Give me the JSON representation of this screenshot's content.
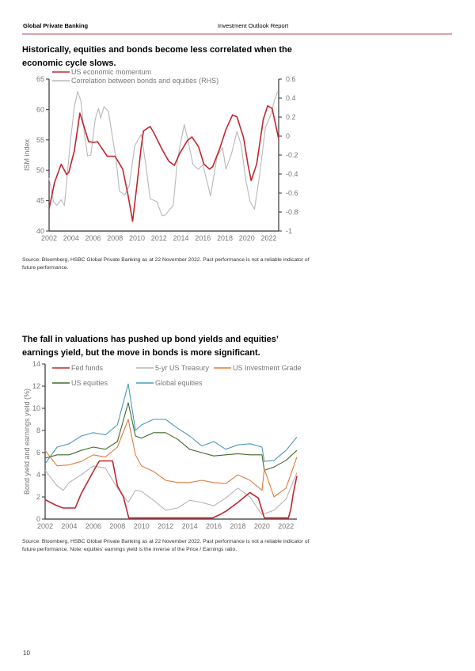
{
  "header": {
    "left": "Global Private Banking",
    "center": "Investment Outlook Report"
  },
  "page_number": "10",
  "colors": {
    "accent": "#c0272d",
    "rule": "#dca3ab"
  },
  "section1": {
    "title": "Historically, equities and bonds become less correlated when the economic cycle slows.",
    "source": "Source: Bloomberg, HSBC Global Private Banking as at 22 November 2022. Past performance is not a reliable indicator of future performance."
  },
  "section2": {
    "title": "The fall in valuations has pushed up bond yields and equities’ earnings yield, but the move in bonds is more significant.",
    "source": "Source: Bloomberg, HSBC Global Private Banking as at 22 November 2022. Past performance is not a reliable indicator of future performance. Note: equities’ earnings yield is the inverse of the Price / Earnings ratio."
  },
  "chart_data": [
    {
      "type": "line",
      "ylabel": "ISM index",
      "ylim": [
        40,
        65
      ],
      "yticks": [
        40,
        45,
        50,
        55,
        60,
        65
      ],
      "y2lim": [
        -1,
        0.6
      ],
      "y2ticks": [
        "-1",
        "-0.8",
        "-0.6",
        "-0.4",
        "-0.2",
        "0",
        "0.2",
        "0.4",
        "0.6"
      ],
      "xlim": [
        2002,
        2022.9
      ],
      "xticks": [
        "2002",
        "2004",
        "2006",
        "2008",
        "2010",
        "2012",
        "2014",
        "2016",
        "2018",
        "2020",
        "2022"
      ],
      "legend_position": "top-left",
      "series": [
        {
          "name": "US economic momentum",
          "axis": "left",
          "color": "#c0272d",
          "points": [
            [
              2002.0,
              43.7
            ],
            [
              2002.5,
              48.0
            ],
            [
              2003.1,
              51.0
            ],
            [
              2003.6,
              49.3
            ],
            [
              2003.8,
              49.7
            ],
            [
              2004.3,
              53.2
            ],
            [
              2004.8,
              59.4
            ],
            [
              2005.6,
              54.7
            ],
            [
              2006.1,
              54.6
            ],
            [
              2006.4,
              54.7
            ],
            [
              2007.3,
              52.3
            ],
            [
              2008.0,
              52.3
            ],
            [
              2008.7,
              50.2
            ],
            [
              2009.2,
              45.8
            ],
            [
              2009.6,
              41.6
            ],
            [
              2010.0,
              47.6
            ],
            [
              2010.4,
              54.1
            ],
            [
              2010.6,
              56.5
            ],
            [
              2011.2,
              57.2
            ],
            [
              2011.5,
              56.3
            ],
            [
              2012.3,
              53.4
            ],
            [
              2012.9,
              51.5
            ],
            [
              2013.4,
              50.8
            ],
            [
              2013.9,
              52.8
            ],
            [
              2014.6,
              54.9
            ],
            [
              2015.0,
              55.5
            ],
            [
              2015.6,
              53.9
            ],
            [
              2016.1,
              51.0
            ],
            [
              2016.6,
              50.2
            ],
            [
              2016.9,
              50.6
            ],
            [
              2017.5,
              53.4
            ],
            [
              2018.1,
              56.7
            ],
            [
              2018.7,
              59.1
            ],
            [
              2019.1,
              58.8
            ],
            [
              2019.7,
              55.4
            ],
            [
              2020.1,
              51.0
            ],
            [
              2020.4,
              48.3
            ],
            [
              2020.9,
              51.0
            ],
            [
              2021.5,
              58.4
            ],
            [
              2021.9,
              60.6
            ],
            [
              2022.3,
              60.2
            ],
            [
              2022.9,
              55.2
            ]
          ]
        },
        {
          "name": "Correlation between bonds and equities (RHS)",
          "axis": "right",
          "color": "#b8b8b8",
          "points": [
            [
              2002.0,
              -0.44
            ],
            [
              2002.4,
              -0.69
            ],
            [
              2002.7,
              -0.73
            ],
            [
              2003.1,
              -0.67
            ],
            [
              2003.4,
              -0.73
            ],
            [
              2003.9,
              -0.1
            ],
            [
              2004.3,
              0.31
            ],
            [
              2004.6,
              0.47
            ],
            [
              2004.9,
              0.37
            ],
            [
              2005.2,
              0.04
            ],
            [
              2005.5,
              -0.21
            ],
            [
              2005.8,
              -0.2
            ],
            [
              2006.2,
              0.18
            ],
            [
              2006.5,
              0.29
            ],
            [
              2006.7,
              0.19
            ],
            [
              2007.0,
              0.31
            ],
            [
              2007.4,
              0.26
            ],
            [
              2007.7,
              0.04
            ],
            [
              2008.1,
              -0.24
            ],
            [
              2008.4,
              -0.58
            ],
            [
              2008.9,
              -0.62
            ],
            [
              2009.3,
              -0.52
            ],
            [
              2009.8,
              -0.1
            ],
            [
              2010.4,
              0.02
            ],
            [
              2010.8,
              -0.3
            ],
            [
              2011.2,
              -0.66
            ],
            [
              2011.8,
              -0.69
            ],
            [
              2012.3,
              -0.84
            ],
            [
              2012.6,
              -0.83
            ],
            [
              2013.0,
              -0.77
            ],
            [
              2013.3,
              -0.73
            ],
            [
              2013.7,
              -0.24
            ],
            [
              2014.3,
              0.12
            ],
            [
              2014.6,
              -0.02
            ],
            [
              2015.1,
              -0.3
            ],
            [
              2015.6,
              -0.35
            ],
            [
              2016.0,
              -0.3
            ],
            [
              2016.3,
              -0.44
            ],
            [
              2016.7,
              -0.63
            ],
            [
              2016.9,
              -0.49
            ],
            [
              2017.3,
              -0.21
            ],
            [
              2017.8,
              -0.12
            ],
            [
              2018.1,
              -0.35
            ],
            [
              2018.6,
              -0.19
            ],
            [
              2019.1,
              0.05
            ],
            [
              2019.5,
              -0.1
            ],
            [
              2019.9,
              -0.46
            ],
            [
              2020.3,
              -0.69
            ],
            [
              2020.7,
              -0.77
            ],
            [
              2021.2,
              -0.38
            ],
            [
              2021.7,
              0.09
            ],
            [
              2022.2,
              0.23
            ],
            [
              2022.5,
              0.37
            ],
            [
              2022.8,
              0.47
            ]
          ]
        }
      ]
    },
    {
      "type": "line",
      "ylabel": "Bond yield and earnings yield (%)",
      "ylim": [
        0,
        14
      ],
      "yticks": [
        0,
        2,
        4,
        6,
        8,
        10,
        12,
        14
      ],
      "xlim": [
        2002,
        2022.9
      ],
      "xticks": [
        "2002",
        "2004",
        "2006",
        "2008",
        "2010",
        "2012",
        "2014",
        "2016",
        "2018",
        "2020",
        "2022"
      ],
      "legend_position": "top",
      "series": [
        {
          "name": "Fed funds",
          "color": "#c0272d",
          "points": [
            [
              2002,
              1.75
            ],
            [
              2002.9,
              1.25
            ],
            [
              2003.5,
              1.0
            ],
            [
              2004.5,
              1.0
            ],
            [
              2005,
              2.3
            ],
            [
              2006,
              4.3
            ],
            [
              2006.5,
              5.25
            ],
            [
              2007.6,
              5.25
            ],
            [
              2008,
              3.0
            ],
            [
              2008.5,
              2.0
            ],
            [
              2008.95,
              0.1
            ],
            [
              2015.9,
              0.1
            ],
            [
              2016.5,
              0.4
            ],
            [
              2017,
              0.7
            ],
            [
              2018,
              1.5
            ],
            [
              2019,
              2.4
            ],
            [
              2019.7,
              1.9
            ],
            [
              2020.2,
              0.1
            ],
            [
              2022.2,
              0.1
            ],
            [
              2022.4,
              0.9
            ],
            [
              2022.6,
              2.3
            ],
            [
              2022.9,
              3.9
            ]
          ]
        },
        {
          "name": "5-yr US Treasury",
          "color": "#b5b5b5",
          "points": [
            [
              2002,
              4.4
            ],
            [
              2003,
              3.0
            ],
            [
              2003.5,
              2.6
            ],
            [
              2004,
              3.3
            ],
            [
              2005,
              4.0
            ],
            [
              2006,
              4.8
            ],
            [
              2007,
              4.6
            ],
            [
              2008,
              2.8
            ],
            [
              2008.9,
              1.5
            ],
            [
              2009.5,
              2.6
            ],
            [
              2010,
              2.5
            ],
            [
              2011,
              1.7
            ],
            [
              2012,
              0.8
            ],
            [
              2013,
              1.0
            ],
            [
              2014,
              1.7
            ],
            [
              2015,
              1.5
            ],
            [
              2016,
              1.2
            ],
            [
              2017,
              1.9
            ],
            [
              2018,
              2.8
            ],
            [
              2019,
              2.0
            ],
            [
              2020,
              0.4
            ],
            [
              2021,
              0.8
            ],
            [
              2022,
              1.8
            ],
            [
              2022.9,
              4.2
            ]
          ]
        },
        {
          "name": "US Investment Grade",
          "color": "#e07a3c",
          "points": [
            [
              2002,
              6.2
            ],
            [
              2003,
              4.8
            ],
            [
              2004,
              4.9
            ],
            [
              2005,
              5.2
            ],
            [
              2006,
              5.8
            ],
            [
              2007,
              5.6
            ],
            [
              2008,
              6.5
            ],
            [
              2008.9,
              9.0
            ],
            [
              2009.5,
              5.8
            ],
            [
              2010,
              4.8
            ],
            [
              2011,
              4.3
            ],
            [
              2012,
              3.5
            ],
            [
              2013,
              3.3
            ],
            [
              2014,
              3.3
            ],
            [
              2015,
              3.5
            ],
            [
              2016,
              3.3
            ],
            [
              2017,
              3.2
            ],
            [
              2018,
              4.0
            ],
            [
              2019,
              3.5
            ],
            [
              2020,
              2.6
            ],
            [
              2020.2,
              4.5
            ],
            [
              2021,
              2.0
            ],
            [
              2022,
              2.8
            ],
            [
              2022.9,
              5.6
            ]
          ]
        },
        {
          "name": "US equities",
          "color": "#3e6b2a",
          "points": [
            [
              2002,
              5.5
            ],
            [
              2003,
              5.8
            ],
            [
              2004,
              5.8
            ],
            [
              2005,
              6.2
            ],
            [
              2006,
              6.5
            ],
            [
              2007,
              6.3
            ],
            [
              2008,
              7.0
            ],
            [
              2008.9,
              10.5
            ],
            [
              2009.5,
              7.5
            ],
            [
              2010,
              7.3
            ],
            [
              2011,
              7.8
            ],
            [
              2012,
              7.8
            ],
            [
              2013,
              7.2
            ],
            [
              2014,
              6.3
            ],
            [
              2015,
              6.0
            ],
            [
              2016,
              5.7
            ],
            [
              2017,
              5.8
            ],
            [
              2018,
              5.9
            ],
            [
              2019,
              5.8
            ],
            [
              2020,
              5.8
            ],
            [
              2020.2,
              4.4
            ],
            [
              2021,
              4.7
            ],
            [
              2022,
              5.3
            ],
            [
              2022.9,
              6.2
            ]
          ]
        },
        {
          "name": "Global equities",
          "color": "#4a9ab8",
          "points": [
            [
              2002,
              5.0
            ],
            [
              2003,
              6.5
            ],
            [
              2004,
              6.8
            ],
            [
              2005,
              7.5
            ],
            [
              2006,
              7.8
            ],
            [
              2007,
              7.6
            ],
            [
              2008,
              8.5
            ],
            [
              2008.9,
              12.2
            ],
            [
              2009.5,
              8.0
            ],
            [
              2010,
              8.5
            ],
            [
              2011,
              9.0
            ],
            [
              2012,
              9.0
            ],
            [
              2013,
              8.2
            ],
            [
              2014,
              7.5
            ],
            [
              2015,
              6.6
            ],
            [
              2016,
              7.0
            ],
            [
              2017,
              6.3
            ],
            [
              2018,
              6.7
            ],
            [
              2019,
              6.8
            ],
            [
              2020,
              6.5
            ],
            [
              2020.2,
              5.2
            ],
            [
              2021,
              5.3
            ],
            [
              2022,
              6.2
            ],
            [
              2022.9,
              7.4
            ]
          ]
        }
      ]
    }
  ]
}
